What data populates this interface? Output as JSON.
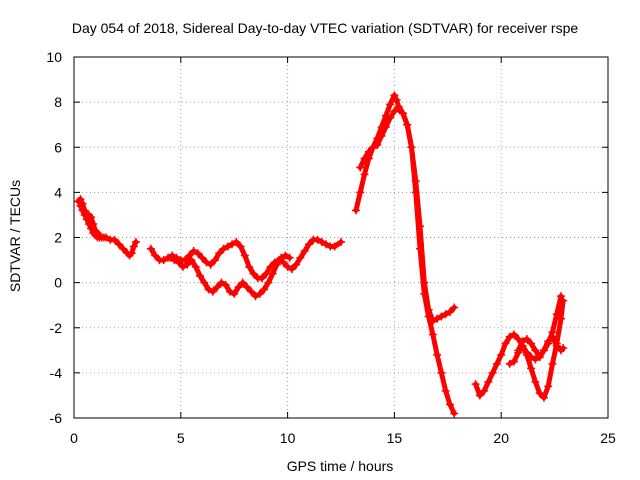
{
  "chart_data": {
    "type": "scatter",
    "title": "Day 054 of 2018, Sidereal Day-to-day VTEC variation (SDTVAR) for receiver rspe",
    "xlabel": "GPS time / hours",
    "ylabel": "SDTVAR / TECUs",
    "xlim": [
      0,
      25
    ],
    "ylim": [
      -6,
      10
    ],
    "xticks": [
      0,
      5,
      10,
      15,
      20,
      25
    ],
    "yticks": [
      -6,
      -4,
      -2,
      0,
      2,
      4,
      6,
      8,
      10
    ],
    "xtick_labels": [
      "0",
      "5",
      "10",
      "15",
      "20",
      "25"
    ],
    "ytick_labels": [
      "-6",
      "-4",
      "-2",
      "0",
      "2",
      "4",
      "6",
      "8",
      "10"
    ],
    "grid": true,
    "legend": "none",
    "marker": "plus",
    "series_color": "#ff0000",
    "series": [
      {
        "x": [
          0.2,
          0.3,
          0.4,
          0.5,
          0.6,
          0.7,
          0.8,
          0.9,
          1.0,
          1.1,
          1.2,
          1.3,
          1.4,
          1.5,
          1.7,
          1.9,
          2.1,
          2.3,
          2.5,
          2.6,
          2.7,
          2.8,
          2.9
        ],
        "y": [
          3.6,
          3.7,
          3.5,
          3.2,
          3.0,
          3.0,
          2.9,
          2.6,
          2.3,
          2.2,
          2.1,
          2.0,
          2.0,
          2.0,
          1.9,
          1.9,
          1.7,
          1.5,
          1.3,
          1.2,
          1.3,
          1.6,
          1.8
        ]
      },
      {
        "x": [
          0.3,
          0.4,
          0.5,
          0.6,
          0.7,
          0.8,
          0.9,
          1.0,
          1.1,
          1.2
        ],
        "y": [
          3.4,
          3.2,
          3.0,
          2.8,
          2.6,
          2.4,
          2.2,
          2.1,
          2.0,
          2.0
        ]
      },
      {
        "x": [
          3.6,
          3.8,
          4.0,
          4.2,
          4.4,
          4.6,
          4.8,
          5.0,
          5.2,
          5.4,
          5.6,
          5.8,
          6.0,
          6.2,
          6.4,
          6.6,
          6.8,
          7.0,
          7.2,
          7.4,
          7.6,
          7.8,
          8.0,
          8.2,
          8.4,
          8.6,
          8.8,
          9.0,
          9.2,
          9.4,
          9.6,
          9.8,
          10.0,
          10.2,
          10.4,
          10.6,
          10.8,
          11.0,
          11.2,
          11.4,
          11.6,
          11.8,
          12.0,
          12.2,
          12.5
        ],
        "y": [
          1.5,
          1.2,
          1.0,
          1.0,
          1.1,
          1.2,
          1.1,
          1.0,
          1.0,
          1.2,
          1.4,
          1.3,
          1.1,
          0.9,
          0.8,
          1.0,
          1.3,
          1.5,
          1.6,
          1.7,
          1.8,
          1.6,
          1.2,
          0.7,
          0.4,
          0.2,
          0.2,
          0.4,
          0.7,
          0.9,
          1.0,
          0.9,
          0.7,
          0.6,
          0.8,
          1.1,
          1.4,
          1.7,
          1.9,
          1.9,
          1.8,
          1.7,
          1.6,
          1.6,
          1.8
        ]
      },
      {
        "x": [
          4.5,
          4.7,
          4.9,
          5.1,
          5.3,
          5.5,
          5.7,
          5.9,
          6.1,
          6.3,
          6.5,
          6.7,
          6.9,
          7.1,
          7.3,
          7.5,
          7.7,
          7.9,
          8.1,
          8.3,
          8.5,
          8.7,
          8.9,
          9.1,
          9.3,
          9.5,
          9.7,
          9.9,
          10.1
        ],
        "y": [
          1.1,
          1.0,
          0.9,
          0.7,
          0.8,
          1.0,
          0.7,
          0.3,
          0.0,
          -0.3,
          -0.4,
          -0.2,
          0.0,
          -0.1,
          -0.4,
          -0.5,
          -0.2,
          0.0,
          -0.2,
          -0.4,
          -0.6,
          -0.5,
          -0.3,
          0.0,
          0.4,
          0.8,
          1.1,
          1.2,
          1.1
        ]
      },
      {
        "x": [
          13.2,
          13.4,
          13.6,
          13.8,
          14.0,
          14.2,
          14.4,
          14.6,
          14.8,
          15.0,
          15.1,
          15.2,
          15.4,
          15.6,
          15.8,
          16.0,
          16.2,
          16.4,
          16.6,
          16.8,
          17.0,
          17.2,
          17.4,
          17.6,
          17.8
        ],
        "y": [
          3.2,
          4.0,
          4.8,
          5.5,
          6.0,
          6.4,
          6.9,
          7.4,
          7.9,
          8.3,
          8.1,
          7.8,
          7.5,
          7.0,
          6.0,
          4.0,
          1.5,
          -0.5,
          -1.5,
          -2.3,
          -3.2,
          -4.0,
          -4.8,
          -5.4,
          -5.8
        ]
      },
      {
        "x": [
          13.4,
          13.6,
          13.8,
          14.0,
          14.2,
          14.4,
          14.6,
          14.8,
          15.0,
          15.2,
          15.4,
          15.6,
          15.8,
          16.0,
          16.2,
          16.4,
          16.6,
          16.8,
          17.0,
          17.2,
          17.4,
          17.6,
          17.8
        ],
        "y": [
          5.1,
          5.5,
          5.8,
          6.0,
          6.1,
          6.5,
          6.9,
          7.3,
          7.6,
          7.7,
          7.5,
          7.0,
          6.0,
          4.5,
          2.5,
          0.0,
          -1.2,
          -1.7,
          -1.6,
          -1.5,
          -1.4,
          -1.3,
          -1.1
        ]
      },
      {
        "x": [
          18.8,
          19.0,
          19.2,
          19.4,
          19.6,
          19.8,
          20.0,
          20.2,
          20.4,
          20.6,
          20.8,
          21.0,
          21.2,
          21.4,
          21.6,
          21.8,
          22.0,
          22.2,
          22.4,
          22.6,
          22.8
        ],
        "y": [
          -4.5,
          -5.0,
          -4.8,
          -4.4,
          -4.0,
          -3.6,
          -3.2,
          -2.7,
          -2.4,
          -2.3,
          -2.5,
          -2.8,
          -3.1,
          -3.3,
          -3.4,
          -3.3,
          -3.0,
          -2.7,
          -2.2,
          -1.4,
          -0.6
        ]
      },
      {
        "x": [
          20.4,
          20.6,
          20.8,
          21.0,
          21.2,
          21.4,
          21.6,
          21.8,
          22.0,
          22.2,
          22.4,
          22.6,
          22.8,
          22.9
        ],
        "y": [
          -3.6,
          -3.5,
          -3.1,
          -2.8,
          -3.2,
          -3.8,
          -4.4,
          -4.9,
          -5.1,
          -4.6,
          -3.6,
          -2.7,
          -1.6,
          -0.8
        ]
      },
      {
        "x": [
          20.8,
          21.0,
          21.2,
          21.4,
          21.6,
          21.8,
          22.0,
          22.2,
          22.4,
          22.6,
          22.8,
          22.9
        ],
        "y": [
          -3.0,
          -2.6,
          -2.5,
          -2.7,
          -3.0,
          -3.3,
          -3.0,
          -2.6,
          -2.4,
          -2.8,
          -3.0,
          -2.9
        ]
      }
    ]
  }
}
